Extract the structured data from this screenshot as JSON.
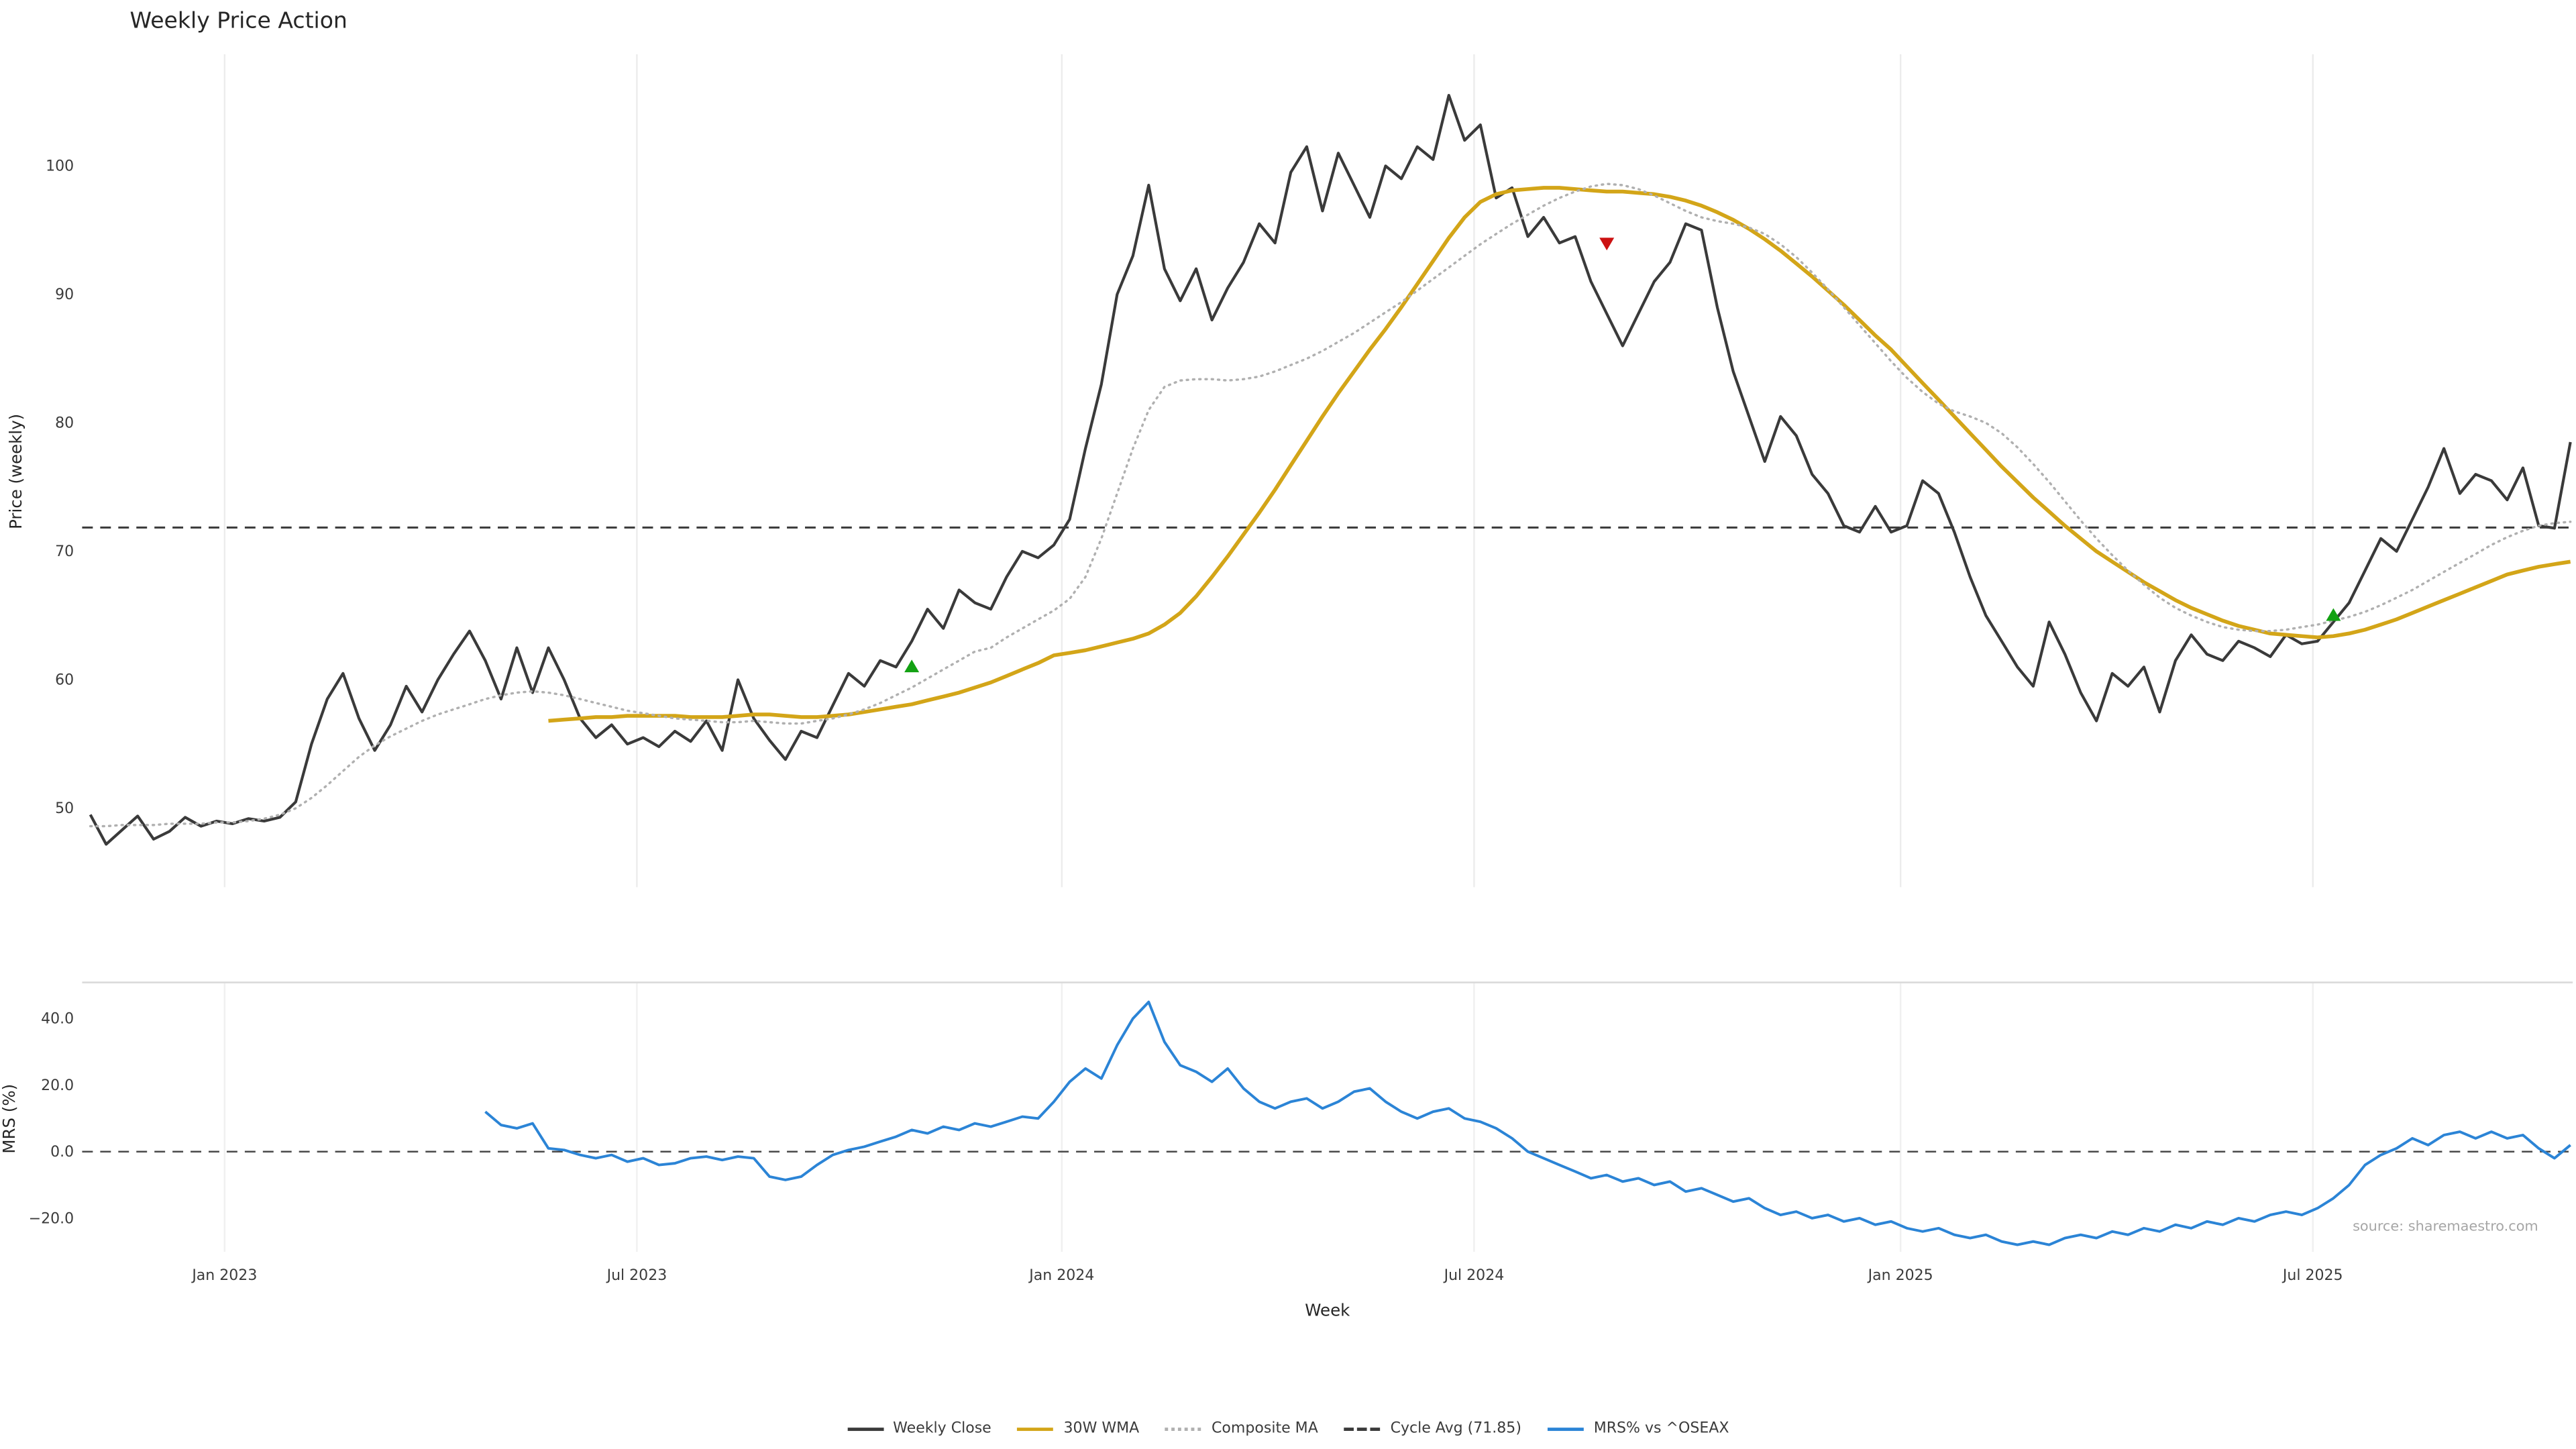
{
  "title": "Weekly Price Action",
  "source_note": "source: sharemaestro.com",
  "axes": {
    "xlabel": "Week",
    "price_ylabel": "Price (weekly)",
    "mrs_ylabel": "MRS (%)",
    "x_ticks": [
      {
        "week": 8.5,
        "label": "Jan 2023"
      },
      {
        "week": 34.6,
        "label": "Jul 2023"
      },
      {
        "week": 61.5,
        "label": "Jan 2024"
      },
      {
        "week": 87.6,
        "label": "Jul 2024"
      },
      {
        "week": 114.6,
        "label": "Jan 2025"
      },
      {
        "week": 140.7,
        "label": "Jul 2025"
      }
    ],
    "price_yticks": [
      {
        "v": 50,
        "label": "50"
      },
      {
        "v": 60,
        "label": "60"
      },
      {
        "v": 70,
        "label": "70"
      },
      {
        "v": 80,
        "label": "80"
      },
      {
        "v": 90,
        "label": "90"
      },
      {
        "v": 100,
        "label": "100"
      }
    ],
    "mrs_yticks": [
      {
        "v": -20,
        "label": "−20.0"
      },
      {
        "v": 0,
        "label": "0.0"
      },
      {
        "v": 20,
        "label": "20.0"
      },
      {
        "v": 40,
        "label": "40.0"
      }
    ]
  },
  "legend": [
    {
      "label": "Weekly Close",
      "color": "#3a3a3a",
      "style": "solid"
    },
    {
      "label": "30W WMA",
      "color": "#d3a518",
      "style": "solid"
    },
    {
      "label": "Composite MA",
      "color": "#b0b0b0",
      "style": "dotted"
    },
    {
      "label": "Cycle Avg (71.85)",
      "color": "#3a3a3a",
      "style": "dashed"
    },
    {
      "label": "MRS% vs ^OSEAX",
      "color": "#2b84d6",
      "style": "solid"
    }
  ],
  "chart_data": [
    {
      "type": "line",
      "panel": "price",
      "title": "Weekly Price Action",
      "ylabel": "Price (weekly)",
      "ylim": [
        43.9,
        108.7
      ],
      "x_unit": "week-index (weekly data, ticks Jan 2023 – Jul 2025)",
      "grid": true,
      "legend_position": "bottom",
      "cycle_avg": 71.85,
      "series": [
        {
          "name": "Weekly Close",
          "data_name": "weekly-close-line",
          "color": "#3a3a3a",
          "style": "solid",
          "width": 1.7,
          "start_week": 0,
          "values": [
            49.5,
            47.2,
            48.3,
            49.4,
            47.6,
            48.2,
            49.3,
            48.6,
            49.0,
            48.8,
            49.2,
            49.0,
            49.3,
            50.5,
            55.0,
            58.5,
            60.5,
            57.0,
            54.5,
            56.5,
            59.5,
            57.5,
            60.0,
            62.0,
            63.8,
            61.5,
            58.5,
            62.5,
            59.0,
            62.5,
            60.0,
            57.0,
            55.5,
            56.5,
            55.0,
            55.5,
            54.8,
            56.0,
            55.2,
            56.8,
            54.5,
            60.0,
            57.0,
            55.3,
            53.8,
            56.0,
            55.5,
            58.0,
            60.5,
            59.5,
            61.5,
            61.0,
            63.0,
            65.5,
            64.0,
            67.0,
            66.0,
            65.5,
            68.0,
            70.0,
            69.5,
            70.5,
            72.5,
            78.0,
            83.0,
            90.0,
            93.0,
            98.5,
            92.0,
            89.5,
            92.0,
            88.0,
            90.5,
            92.5,
            95.5,
            94.0,
            99.5,
            101.5,
            96.5,
            101.0,
            98.5,
            96.0,
            100.0,
            99.0,
            101.5,
            100.5,
            105.5,
            102.0,
            103.2,
            97.5,
            98.3,
            94.5,
            96.0,
            94.0,
            94.5,
            91.0,
            88.5,
            86.0,
            88.5,
            91.0,
            92.5,
            95.5,
            95.0,
            89.0,
            84.0,
            80.5,
            77.0,
            80.5,
            79.0,
            76.0,
            74.5,
            72.0,
            71.5,
            73.5,
            71.5,
            72.0,
            75.5,
            74.5,
            71.5,
            68.0,
            65.0,
            63.0,
            61.0,
            59.5,
            64.5,
            62.0,
            59.0,
            56.8,
            60.5,
            59.5,
            61.0,
            57.5,
            61.5,
            63.5,
            62.0,
            61.5,
            63.0,
            62.5,
            61.8,
            63.5,
            62.8,
            63.0,
            64.5,
            66.0,
            68.5,
            71.0,
            70.0,
            72.5,
            75.0,
            78.0,
            74.5,
            76.0,
            75.5,
            74.0,
            76.5,
            72.0,
            71.8,
            78.5
          ]
        },
        {
          "name": "30W WMA",
          "data_name": "wma-30w-line",
          "color": "#d3a518",
          "style": "solid",
          "width": 2.3,
          "start_week": 29,
          "values": [
            56.8,
            56.9,
            57.0,
            57.1,
            57.1,
            57.2,
            57.2,
            57.2,
            57.2,
            57.1,
            57.1,
            57.1,
            57.2,
            57.3,
            57.3,
            57.2,
            57.1,
            57.1,
            57.2,
            57.3,
            57.5,
            57.7,
            57.9,
            58.1,
            58.4,
            58.7,
            59.0,
            59.4,
            59.8,
            60.3,
            60.8,
            61.3,
            61.9,
            62.1,
            62.3,
            62.6,
            62.9,
            63.2,
            63.6,
            64.3,
            65.2,
            66.5,
            68.0,
            69.6,
            71.3,
            73.0,
            74.8,
            76.7,
            78.6,
            80.5,
            82.3,
            84.0,
            85.7,
            87.3,
            89.0,
            90.8,
            92.6,
            94.4,
            96.0,
            97.2,
            97.8,
            98.1,
            98.2,
            98.3,
            98.3,
            98.2,
            98.1,
            98.0,
            98.0,
            97.9,
            97.8,
            97.6,
            97.3,
            96.9,
            96.4,
            95.8,
            95.1,
            94.3,
            93.4,
            92.4,
            91.4,
            90.3,
            89.2,
            88.0,
            86.8,
            85.7,
            84.4,
            83.1,
            81.8,
            80.5,
            79.2,
            77.9,
            76.6,
            75.4,
            74.2,
            73.1,
            72.0,
            71.0,
            70.0,
            69.2,
            68.4,
            67.6,
            66.9,
            66.2,
            65.6,
            65.1,
            64.6,
            64.2,
            63.9,
            63.6,
            63.5,
            63.4,
            63.3,
            63.4,
            63.6,
            63.9,
            64.3,
            64.7,
            65.2,
            65.7,
            66.2,
            66.7,
            67.2,
            67.7,
            68.2,
            68.5,
            68.8,
            69.0,
            69.2
          ]
        },
        {
          "name": "Composite MA",
          "data_name": "composite-ma-line",
          "color": "#b0b0b0",
          "style": "dotted",
          "width": 1.4,
          "start_week": 0,
          "values": [
            48.6,
            48.6,
            48.7,
            48.7,
            48.7,
            48.8,
            48.8,
            48.8,
            48.9,
            48.9,
            49.0,
            49.2,
            49.5,
            50.0,
            50.8,
            51.8,
            52.9,
            54.0,
            54.9,
            55.6,
            56.2,
            56.8,
            57.3,
            57.7,
            58.1,
            58.5,
            58.8,
            59.0,
            59.1,
            59.0,
            58.8,
            58.5,
            58.2,
            57.9,
            57.6,
            57.4,
            57.2,
            57.0,
            56.9,
            56.8,
            56.7,
            56.7,
            56.8,
            56.7,
            56.6,
            56.6,
            56.8,
            57.0,
            57.3,
            57.7,
            58.2,
            58.8,
            59.4,
            60.1,
            60.8,
            61.5,
            62.2,
            62.5,
            63.3,
            64.0,
            64.7,
            65.4,
            66.3,
            68.0,
            71.0,
            74.5,
            78.0,
            81.0,
            82.8,
            83.3,
            83.4,
            83.4,
            83.3,
            83.4,
            83.6,
            84.0,
            84.5,
            85.0,
            85.6,
            86.3,
            87.0,
            87.8,
            88.6,
            89.4,
            90.3,
            91.2,
            92.1,
            93.0,
            93.9,
            94.7,
            95.5,
            96.2,
            96.9,
            97.5,
            98.0,
            98.4,
            98.6,
            98.5,
            98.2,
            97.7,
            97.1,
            96.5,
            96.0,
            95.7,
            95.5,
            95.2,
            94.7,
            93.9,
            92.9,
            91.7,
            90.4,
            89.0,
            87.6,
            86.2,
            84.8,
            83.5,
            82.4,
            81.5,
            80.9,
            80.5,
            80.0,
            79.2,
            78.1,
            76.8,
            75.4,
            73.9,
            72.4,
            71.0,
            69.7,
            68.5,
            67.4,
            66.4,
            65.6,
            65.0,
            64.5,
            64.1,
            63.9,
            63.8,
            63.8,
            63.9,
            64.1,
            64.3,
            64.6,
            64.9,
            65.3,
            65.8,
            66.4,
            67.0,
            67.7,
            68.4,
            69.1,
            69.8,
            70.5,
            71.1,
            71.6,
            72.0,
            72.2,
            72.3
          ]
        }
      ],
      "signals": [
        {
          "type": "buy",
          "week": 52,
          "value": 61.0,
          "color": "#13a113"
        },
        {
          "type": "sell",
          "week": 96,
          "value": 94.0,
          "color": "#cc1111"
        },
        {
          "type": "buy",
          "week": 142,
          "value": 65.0,
          "color": "#13a113"
        }
      ]
    },
    {
      "type": "line",
      "panel": "mrs",
      "ylabel": "MRS (%)",
      "xlabel": "Week",
      "ylim": [
        -30,
        50
      ],
      "grid": true,
      "zero_line": 0,
      "series": [
        {
          "name": "MRS% vs ^OSEAX",
          "data_name": "mrs-line",
          "color": "#2b84d6",
          "style": "solid",
          "width": 1.6,
          "start_week": 25,
          "values": [
            12.0,
            8.0,
            7.0,
            8.5,
            1.0,
            0.5,
            -1.0,
            -2.0,
            -1.0,
            -3.0,
            -2.0,
            -4.0,
            -3.5,
            -2.0,
            -1.5,
            -2.5,
            -1.5,
            -2.0,
            -7.5,
            -8.5,
            -7.5,
            -4.0,
            -1.0,
            0.5,
            1.5,
            3.0,
            4.5,
            6.5,
            5.5,
            7.5,
            6.5,
            8.5,
            7.5,
            9.0,
            10.5,
            10.0,
            15.0,
            21.0,
            25.0,
            22.0,
            32.0,
            40.0,
            45.0,
            33.0,
            26.0,
            24.0,
            21.0,
            25.0,
            19.0,
            15.0,
            13.0,
            15.0,
            16.0,
            13.0,
            15.0,
            18.0,
            19.0,
            15.0,
            12.0,
            10.0,
            12.0,
            13.0,
            10.0,
            9.0,
            7.0,
            4.0,
            0.0,
            -2.0,
            -4.0,
            -6.0,
            -8.0,
            -7.0,
            -9.0,
            -8.0,
            -10.0,
            -9.0,
            -12.0,
            -11.0,
            -13.0,
            -15.0,
            -14.0,
            -17.0,
            -19.0,
            -18.0,
            -20.0,
            -19.0,
            -21.0,
            -20.0,
            -22.0,
            -21.0,
            -23.0,
            -24.0,
            -23.0,
            -25.0,
            -26.0,
            -25.0,
            -27.0,
            -28.0,
            -27.0,
            -28.0,
            -26.0,
            -25.0,
            -26.0,
            -24.0,
            -25.0,
            -23.0,
            -24.0,
            -22.0,
            -23.0,
            -21.0,
            -22.0,
            -20.0,
            -21.0,
            -19.0,
            -18.0,
            -19.0,
            -17.0,
            -14.0,
            -10.0,
            -4.0,
            -1.0,
            1.0,
            4.0,
            2.0,
            5.0,
            6.0,
            4.0,
            6.0,
            4.0,
            5.0,
            1.0,
            -2.0,
            2.0
          ]
        }
      ]
    }
  ]
}
